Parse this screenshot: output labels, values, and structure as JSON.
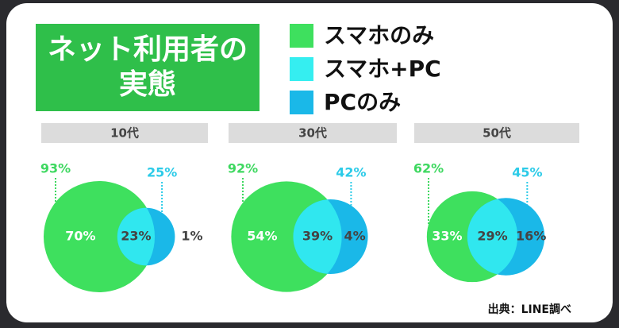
{
  "title_lines": [
    "ネット利用者の",
    "実態"
  ],
  "legend": [
    {
      "name": "スマホのみ",
      "color": "#3ee05e"
    },
    {
      "name": "スマホ+PC",
      "color": "#35eef0"
    },
    {
      "name": "PCのみ",
      "color": "#1ab8e8"
    }
  ],
  "source": "出典：LINE調べ",
  "chart_data": [
    {
      "type": "venn",
      "title": "10代",
      "totals": [
        93,
        25
      ],
      "total_labels": [
        "93%",
        "25%"
      ],
      "values": [
        70,
        23,
        1
      ],
      "value_labels": [
        "70%",
        "23%",
        "1%"
      ]
    },
    {
      "type": "venn",
      "title": "30代",
      "totals": [
        92,
        42
      ],
      "total_labels": [
        "92%",
        "42%"
      ],
      "values": [
        54,
        39,
        4
      ],
      "value_labels": [
        "54%",
        "39%",
        "4%"
      ]
    },
    {
      "type": "venn",
      "title": "50代",
      "totals": [
        62,
        45
      ],
      "total_labels": [
        "62%",
        "45%"
      ],
      "values": [
        33,
        29,
        16
      ],
      "value_labels": [
        "33%",
        "29%",
        "16%"
      ]
    }
  ]
}
